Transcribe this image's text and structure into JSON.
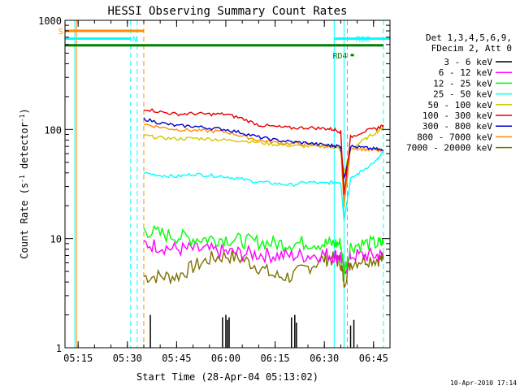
{
  "chart_data": {
    "type": "line",
    "title": "HESSI Observing Summary Count Rates",
    "xlabel": "Start Time (28-Apr-04 05:13:02)",
    "ylabel_main": "Count Rate (s",
    "ylabel_sup1": "-1",
    "ylabel_mid": " detector",
    "ylabel_sup2": "-1",
    "ylabel_end": ")",
    "yscale": "log",
    "xlim": [
      "05:11",
      "06:50"
    ],
    "ylim": [
      1,
      1000
    ],
    "xticks": [
      "05:15",
      "05:30",
      "05:45",
      "06:00",
      "06:15",
      "06:30",
      "06:45"
    ],
    "yticks": [
      {
        "value": 1,
        "label": "1"
      },
      {
        "value": 10,
        "label": "10"
      },
      {
        "value": 100,
        "label": "100"
      },
      {
        "value": 1000,
        "label": "1000"
      }
    ],
    "legend": {
      "position": "right",
      "header": [
        "Det 1,3,4,5,6,9,",
        "FDecim 2, Att 0"
      ]
    },
    "series": [
      {
        "name": "3 - 6 keV",
        "color": "#000000"
      },
      {
        "name": "6 - 12 keV",
        "color": "#ff00ff"
      },
      {
        "name": "12 - 25 keV",
        "color": "#00ff00"
      },
      {
        "name": "25 - 50 keV",
        "color": "#00ffff"
      },
      {
        "name": "50 - 100 keV",
        "color": "#d2c800"
      },
      {
        "name": "100 - 300 keV",
        "color": "#e60000"
      },
      {
        "name": "300 - 800 keV",
        "color": "#0000cc"
      },
      {
        "name": "800 - 7000 keV",
        "color": "#ff8c00"
      },
      {
        "name": "7000 - 20000 keV",
        "color": "#7d7000"
      }
    ],
    "series_values": {
      "times": [
        "05:35",
        "05:40",
        "05:45",
        "05:50",
        "05:55",
        "06:00",
        "06:05",
        "06:10",
        "06:15",
        "06:20",
        "06:25",
        "06:30",
        "06:33",
        "06:35",
        "06:36",
        "06:38",
        "06:42",
        "06:46",
        "06:48"
      ],
      "50-100 keV": [
        88,
        84,
        82,
        83,
        82,
        80,
        79,
        76,
        73,
        71,
        70,
        70,
        69,
        65,
        40,
        66,
        80,
        95,
        105
      ],
      "100-300 keV": [
        155,
        145,
        138,
        140,
        138,
        138,
        126,
        110,
        106,
        103,
        104,
        102,
        100,
        95,
        25,
        85,
        96,
        102,
        110
      ],
      "300-800 keV": [
        125,
        115,
        108,
        107,
        103,
        100,
        93,
        85,
        80,
        77,
        75,
        72,
        71,
        70,
        35,
        70,
        68,
        66,
        64
      ],
      "800-7000 keV": [
        112,
        105,
        100,
        98,
        97,
        95,
        87,
        80,
        76,
        74,
        73,
        71,
        70,
        68,
        20,
        68,
        66,
        64,
        63
      ],
      "25-50 keV": [
        40,
        38,
        37,
        39,
        38,
        37,
        35,
        33,
        32,
        31,
        33,
        32,
        33,
        33,
        15,
        35,
        43,
        52,
        62
      ],
      "12-25 keV": [
        12,
        11,
        10.5,
        10,
        10,
        10,
        9.5,
        9.3,
        9,
        9,
        9.2,
        9,
        9,
        9,
        5,
        8.5,
        9,
        9,
        9
      ],
      "6-12 keV": [
        9,
        8.5,
        8,
        8,
        7.8,
        7.5,
        7.3,
        7.2,
        7,
        7,
        7,
        7.2,
        7,
        7,
        5,
        7,
        7,
        7,
        7
      ],
      "7000-20000 keV": [
        4.5,
        4.5,
        4.5,
        5.5,
        6.5,
        7,
        6.5,
        5.5,
        4.5,
        4.5,
        5.5,
        6.5,
        6.5,
        6,
        4,
        6,
        6.5,
        6.5,
        6.5
      ]
    },
    "flags": [
      {
        "label": "S",
        "color": "#ff8c00",
        "value": 800,
        "start": "05:11",
        "end": "05:35"
      },
      {
        "label": "N",
        "color": "#00ffff",
        "value": 680,
        "start": "05:11",
        "end": "05:31"
      },
      {
        "label": "RD0",
        "color": "#00ffff",
        "value": 680,
        "start": "06:33",
        "end": "06:50"
      },
      {
        "label": "RD4",
        "color": "#008000",
        "value": 480,
        "start": "06:38",
        "end": "06:39"
      },
      {
        "label": "",
        "color": "#008000",
        "value": 590,
        "start": "05:11",
        "end": "06:48"
      }
    ],
    "vertical_markers": [
      {
        "time": "05:14",
        "color": "#00ffff",
        "style": "solid"
      },
      {
        "time": "05:14.5",
        "color": "#ff8c00",
        "style": "solid"
      },
      {
        "time": "05:31",
        "color": "#00ffff",
        "style": "dashed"
      },
      {
        "time": "05:33",
        "color": "#00ffff",
        "style": "dashed"
      },
      {
        "time": "05:35",
        "color": "#ff8c00",
        "style": "dashed"
      },
      {
        "time": "06:33",
        "color": "#00ffff",
        "style": "solid"
      },
      {
        "time": "06:36",
        "color": "#00ffff",
        "style": "solid"
      },
      {
        "time": "06:37",
        "color": "#ff8c00",
        "style": "dashed"
      },
      {
        "time": "06:48",
        "color": "#00ffff",
        "style": "dashed"
      }
    ]
  },
  "footer": {
    "timestamp": "10-Apr-2010 17:14"
  }
}
